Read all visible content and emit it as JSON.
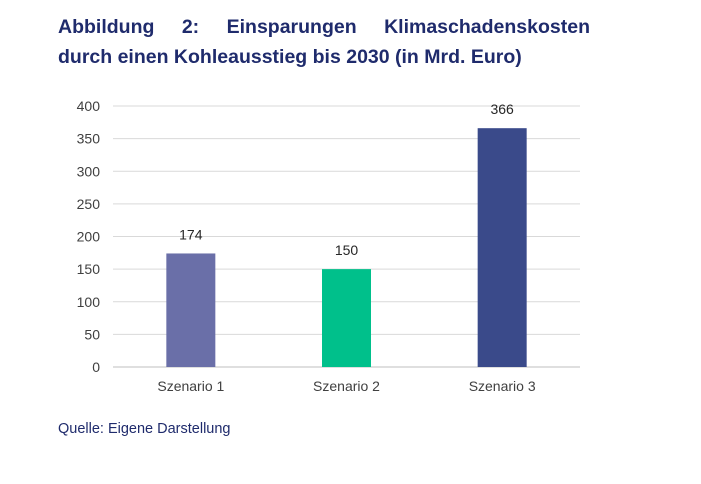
{
  "title_words": [
    "Abbildung",
    "2:",
    "Einsparungen",
    "Klimaschadenskosten"
  ],
  "title_line2": "durch einen Kohleausstieg bis 2030 (in Mrd. Euro)",
  "source": "Quelle: Eigene Darstellung",
  "chart_data": {
    "type": "bar",
    "title": "Abbildung 2: Einsparungen Klimaschadenskosten durch einen Kohleausstieg bis 2030 (in Mrd. Euro)",
    "categories": [
      "Szenario 1",
      "Szenario 2",
      "Szenario 3"
    ],
    "values": [
      174,
      150,
      366
    ],
    "colors": [
      "#6a6fa8",
      "#00c08b",
      "#3a4a8a"
    ],
    "ylim": [
      0,
      400
    ],
    "yticks": [
      0,
      50,
      100,
      150,
      200,
      250,
      300,
      350,
      400
    ],
    "grid": true,
    "data_labels": true,
    "xlabel": "",
    "ylabel": ""
  }
}
